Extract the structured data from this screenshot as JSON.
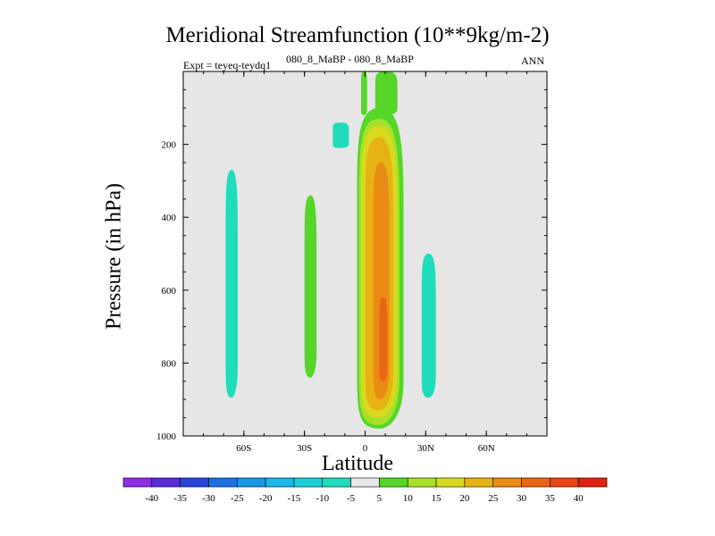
{
  "title": "Meridional Streamfunction (10**9kg/m-2)",
  "experiment_label": "Expt = teyeq-teydq1",
  "case_label": "080_8_MaBP - 080_8_MaBP",
  "season_label": "ANN",
  "chart_data": {
    "type": "contour",
    "title": "Meridional Streamfunction (10**9kg/m-2)",
    "xlabel": "Latitude",
    "ylabel": "Pressure (in hPa)",
    "xlim": [
      -90,
      90
    ],
    "ylim": [
      1000,
      0
    ],
    "x_ticks": [
      {
        "value": -60,
        "label": "60S"
      },
      {
        "value": -30,
        "label": "30S"
      },
      {
        "value": 0,
        "label": "0"
      },
      {
        "value": 30,
        "label": "30N"
      },
      {
        "value": 60,
        "label": "60N"
      }
    ],
    "y_ticks": [
      {
        "value": 200,
        "label": "200"
      },
      {
        "value": 400,
        "label": "400"
      },
      {
        "value": 600,
        "label": "600"
      },
      {
        "value": 800,
        "label": "800"
      },
      {
        "value": 1000,
        "label": "1000"
      }
    ],
    "colorbar": {
      "labels": [
        "-40",
        "-35",
        "-30",
        "-25",
        "-20",
        "-15",
        "-10",
        "-5",
        "5",
        "10",
        "15",
        "20",
        "25",
        "30",
        "35",
        "40"
      ],
      "colors": [
        "#8e2ee0",
        "#5a2cd6",
        "#2a43d8",
        "#1f6fe0",
        "#1c97e6",
        "#1ab7e8",
        "#1cccd6",
        "#1fdcba",
        "#e8e8e8",
        "#55d628",
        "#a7e02b",
        "#d7da1f",
        "#e6b214",
        "#e98b14",
        "#e96614",
        "#e84416",
        "#e02210"
      ]
    },
    "regions": [
      {
        "name": "negative-cell-60S",
        "lat_min": -69,
        "lat_max": -63,
        "p_top": 270,
        "p_bottom": 895,
        "level": -7.5,
        "color": "#1fdcba"
      },
      {
        "name": "negative-cell-25S",
        "lat_min": -30,
        "lat_max": -24,
        "p_top": 340,
        "p_bottom": 840,
        "level": 7.5,
        "color": "#55d628"
      },
      {
        "name": "upper-blob-15S",
        "lat_min": -16,
        "lat_max": -8,
        "p_top": 140,
        "p_bottom": 210,
        "level": -7.5,
        "color": "#1fdcba"
      },
      {
        "name": "upper-cell-eq",
        "lat_min": -2,
        "lat_max": 1,
        "p_top": 0,
        "p_bottom": 120,
        "level": 7.5,
        "color": "#55d628"
      },
      {
        "name": "upper-cell-10N",
        "lat_min": 5,
        "lat_max": 16,
        "p_top": 0,
        "p_bottom": 120,
        "level": 7.5,
        "color": "#55d628"
      },
      {
        "name": "hadley-cell-outer",
        "lat_min": -4,
        "lat_max": 19,
        "p_top": 100,
        "p_bottom": 980,
        "level": 7.5,
        "color": "#55d628"
      },
      {
        "name": "hadley-cell-10",
        "lat_min": -3,
        "lat_max": 17,
        "p_top": 130,
        "p_bottom": 970,
        "level": 12.5,
        "color": "#a7e02b"
      },
      {
        "name": "hadley-cell-15",
        "lat_min": -2,
        "lat_max": 16,
        "p_top": 150,
        "p_bottom": 950,
        "level": 17.5,
        "color": "#d7da1f"
      },
      {
        "name": "hadley-cell-20",
        "lat_min": 0,
        "lat_max": 14,
        "p_top": 180,
        "p_bottom": 930,
        "level": 22.5,
        "color": "#e6b214"
      },
      {
        "name": "hadley-cell-25",
        "lat_min": 4,
        "lat_max": 12,
        "p_top": 250,
        "p_bottom": 900,
        "level": 27.5,
        "color": "#e98b14"
      },
      {
        "name": "hadley-cell-30",
        "lat_min": 7,
        "lat_max": 11,
        "p_top": 620,
        "p_bottom": 850,
        "level": 32.5,
        "color": "#e96614"
      },
      {
        "name": "positive-cell-30N",
        "lat_min": 28,
        "lat_max": 35,
        "p_top": 500,
        "p_bottom": 895,
        "level": -7.5,
        "color": "#1fdcba"
      }
    ]
  }
}
